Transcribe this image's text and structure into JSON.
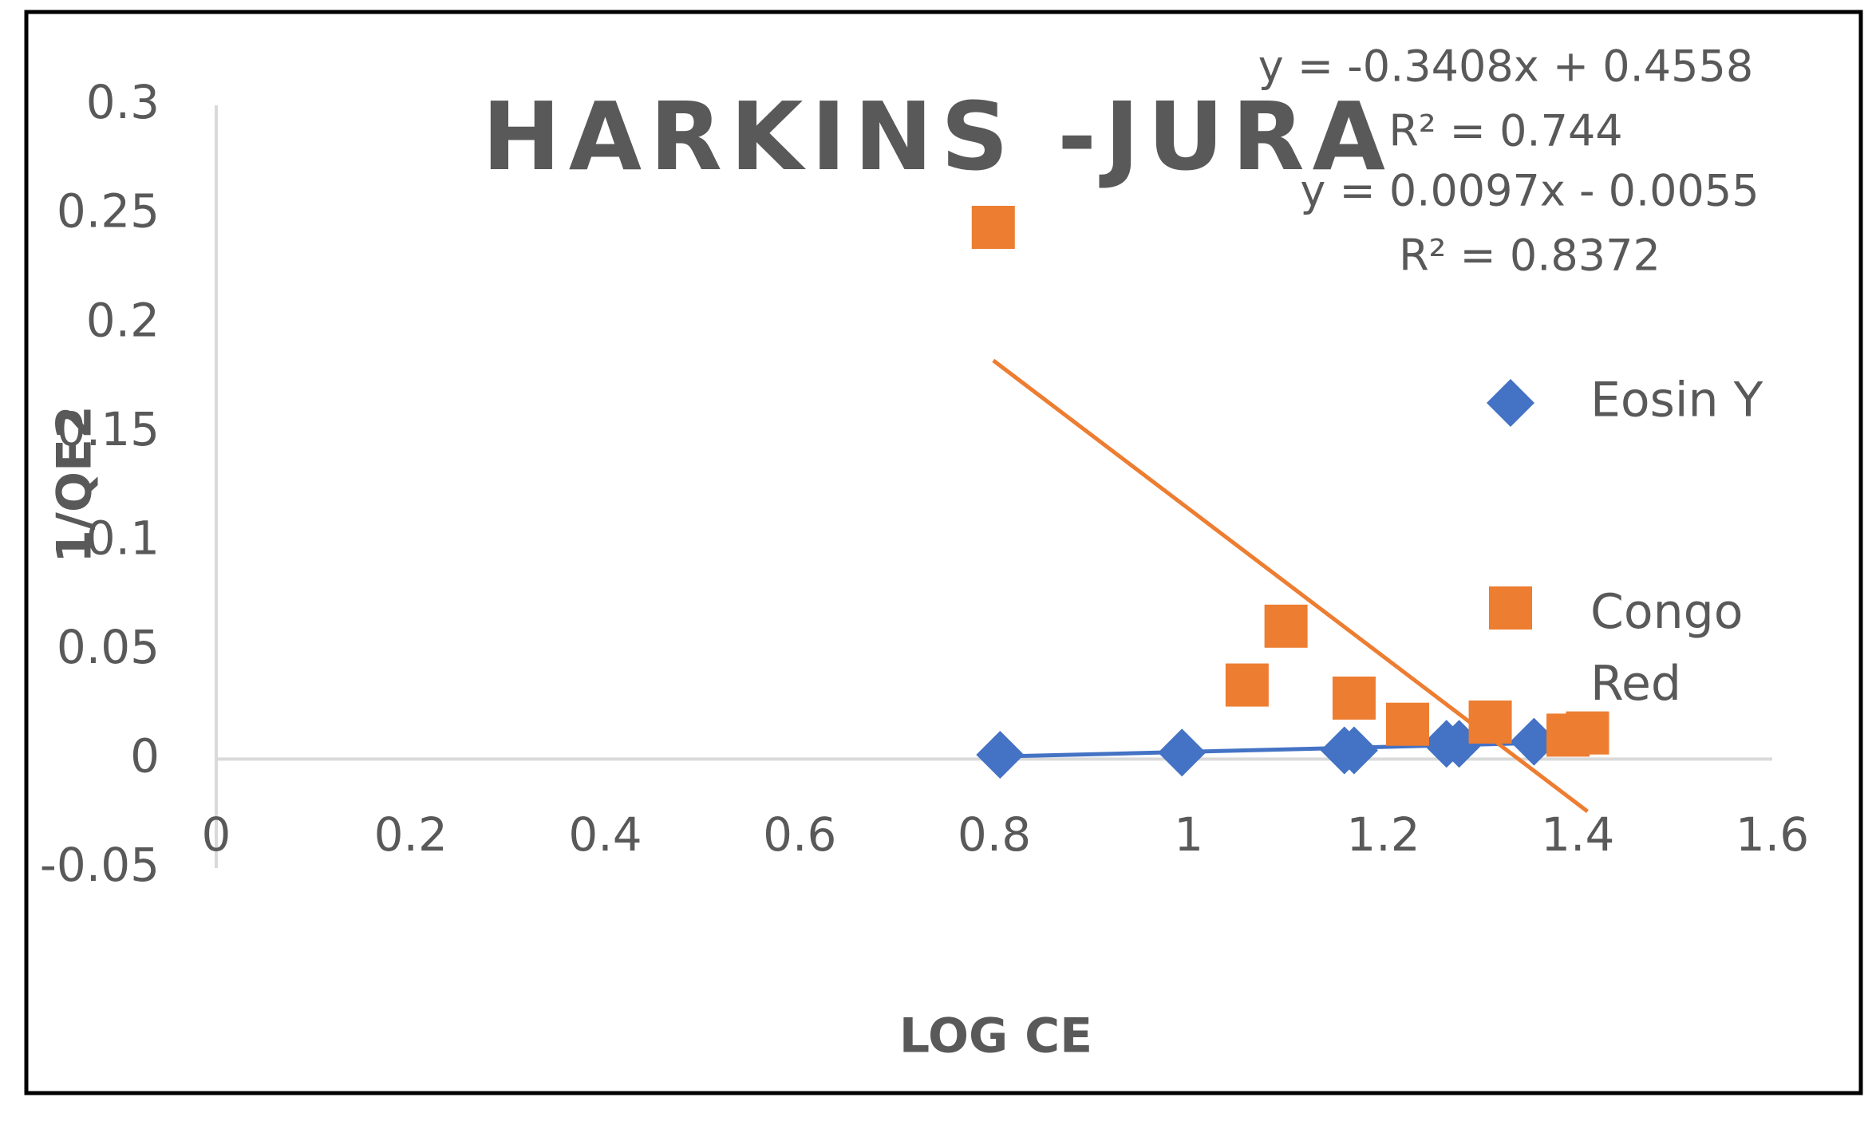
{
  "chart_data": {
    "type": "scatter",
    "title": "HARKINS -JURA",
    "x_label": "LOG CE",
    "y_label": "1/QE2",
    "xlim": [
      0,
      1.6
    ],
    "ylim": [
      -0.05,
      0.3
    ],
    "xticks": [
      0,
      0.2,
      0.4,
      0.6,
      0.8,
      1,
      1.2,
      1.4,
      1.6
    ],
    "yticks": [
      -0.05,
      0,
      0.05,
      0.1,
      0.15,
      0.2,
      0.25,
      0.3
    ],
    "grid": false,
    "legend": "right",
    "series": [
      {
        "name": "Eosin Y",
        "color": "#4472c4",
        "marker": "diamond",
        "x": [
          0.806,
          0.993,
          1.16,
          1.17,
          1.265,
          1.278,
          1.355
        ],
        "values": [
          0.002,
          0.003,
          0.004,
          0.004,
          0.007,
          0.007,
          0.008
        ],
        "trendline": {
          "equation": "y = 0.0097x - 0.0055",
          "r_squared": "R² = 0.8372"
        }
      },
      {
        "name": "Congo Red",
        "color": "#ed7d31",
        "marker": "square",
        "x": [
          0.799,
          1.06,
          1.1,
          1.17,
          1.225,
          1.31,
          1.39,
          1.41
        ],
        "values": [
          0.244,
          0.034,
          0.061,
          0.028,
          0.016,
          0.017,
          0.011,
          0.012
        ],
        "trendline": {
          "equation": "y = -0.3408x + 0.4558",
          "r_squared": "R² = 0.744"
        }
      }
    ]
  }
}
